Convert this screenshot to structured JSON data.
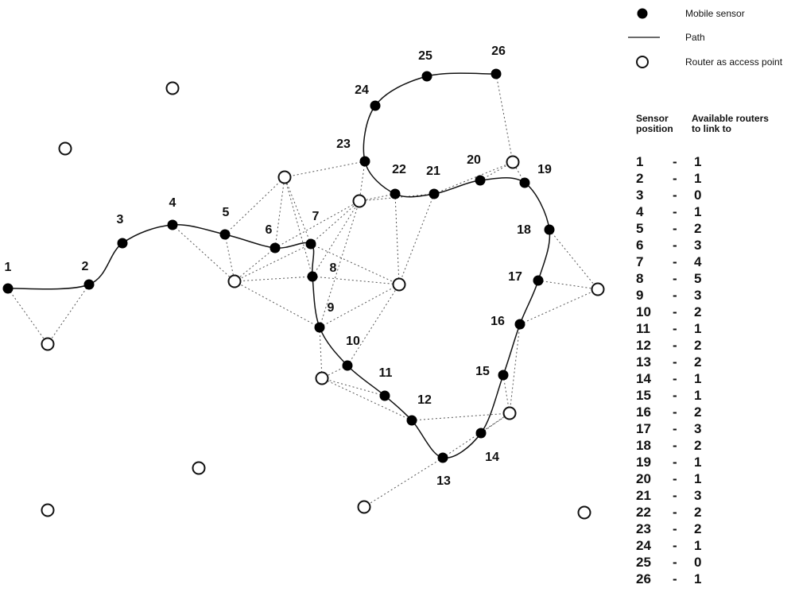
{
  "legend": {
    "sensor_label": "Mobile sensor",
    "path_label": "Path",
    "router_label": "Router as access point"
  },
  "table": {
    "header_col1": [
      "Sensor",
      "position"
    ],
    "header_col2": [
      "Available routers",
      "to link to"
    ],
    "dash": "-",
    "rows": [
      {
        "sensor": "1",
        "routers": "1"
      },
      {
        "sensor": "2",
        "routers": "1"
      },
      {
        "sensor": "3",
        "routers": "0"
      },
      {
        "sensor": "4",
        "routers": "1"
      },
      {
        "sensor": "5",
        "routers": "2"
      },
      {
        "sensor": "6",
        "routers": "3"
      },
      {
        "sensor": "7",
        "routers": "4"
      },
      {
        "sensor": "8",
        "routers": "5"
      },
      {
        "sensor": "9",
        "routers": "3"
      },
      {
        "sensor": "10",
        "routers": "2"
      },
      {
        "sensor": "11",
        "routers": "1"
      },
      {
        "sensor": "12",
        "routers": "2"
      },
      {
        "sensor": "13",
        "routers": "2"
      },
      {
        "sensor": "14",
        "routers": "1"
      },
      {
        "sensor": "15",
        "routers": "1"
      },
      {
        "sensor": "16",
        "routers": "2"
      },
      {
        "sensor": "17",
        "routers": "3"
      },
      {
        "sensor": "18",
        "routers": "2"
      },
      {
        "sensor": "19",
        "routers": "1"
      },
      {
        "sensor": "20",
        "routers": "1"
      },
      {
        "sensor": "21",
        "routers": "3"
      },
      {
        "sensor": "22",
        "routers": "2"
      },
      {
        "sensor": "23",
        "routers": "2"
      },
      {
        "sensor": "24",
        "routers": "1"
      },
      {
        "sensor": "25",
        "routers": "0"
      },
      {
        "sensor": "26",
        "routers": "1"
      }
    ]
  },
  "sensor_labels": [
    "1",
    "2",
    "3",
    "4",
    "5",
    "6",
    "7",
    "8",
    "9",
    "10",
    "11",
    "12",
    "13",
    "14",
    "15",
    "16",
    "17",
    "18",
    "19",
    "20",
    "21",
    "22",
    "23",
    "24",
    "25",
    "26"
  ]
}
